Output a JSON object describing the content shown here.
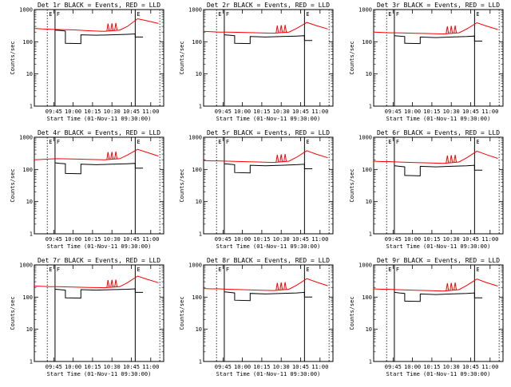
{
  "chart_data": {
    "type": "line",
    "layout": "3x3 grid",
    "x_ticks": [
      "09:45",
      "10:00",
      "10:15",
      "10:30",
      "10:45",
      "11:00"
    ],
    "x_range": [
      "09:30",
      "11:10"
    ],
    "y_scale": "log",
    "ylim": [
      1,
      1000
    ],
    "y_ticks": [
      "1",
      "10",
      "100",
      "1000"
    ],
    "ylabel": "Counts/sec",
    "xlabel": "Start Time (01-Nov-11 09:30:00)",
    "series_colors": {
      "events": "#000000",
      "lld": "#ff0000"
    },
    "markers": [
      {
        "time": "09:40",
        "label": "E",
        "style": "dotted"
      },
      {
        "time": "09:46",
        "label": "F",
        "style": "solid"
      },
      {
        "time": "10:48",
        "label": "E",
        "style": "solid"
      },
      {
        "time": "11:07",
        "label": "",
        "style": "dotted"
      }
    ],
    "panels": [
      {
        "title": "Det 1r BLACK = Events, RED = LLD",
        "events": [
          [
            9.77,
            230
          ],
          [
            9.83,
            225
          ],
          [
            9.9,
            215
          ],
          [
            9.9,
            90
          ],
          [
            10.1,
            88
          ],
          [
            10.1,
            165
          ],
          [
            10.3,
            160
          ],
          [
            10.5,
            165
          ],
          [
            10.7,
            170
          ],
          [
            10.8,
            175
          ],
          [
            10.8,
            140
          ],
          [
            10.9,
            140
          ]
        ],
        "lld": [
          [
            9.5,
            260
          ],
          [
            9.6,
            250
          ],
          [
            9.7,
            245
          ],
          [
            9.8,
            240
          ],
          [
            10.0,
            235
          ],
          [
            10.2,
            220
          ],
          [
            10.4,
            210
          ],
          [
            10.6,
            230
          ],
          [
            10.7,
            300
          ],
          [
            10.83,
            520
          ],
          [
            10.95,
            450
          ],
          [
            11.1,
            370
          ]
        ],
        "lld_spikes": [
          10.45,
          10.5,
          10.55
        ]
      },
      {
        "title": "Det 2r BLACK = Events, RED = LLD",
        "events": [
          [
            9.77,
            165
          ],
          [
            9.83,
            160
          ],
          [
            9.9,
            155
          ],
          [
            9.9,
            90
          ],
          [
            10.1,
            88
          ],
          [
            10.1,
            145
          ],
          [
            10.3,
            140
          ],
          [
            10.5,
            145
          ],
          [
            10.7,
            150
          ],
          [
            10.8,
            155
          ],
          [
            10.8,
            110
          ],
          [
            10.9,
            110
          ]
        ],
        "lld": [
          [
            9.5,
            210
          ],
          [
            9.6,
            205
          ],
          [
            9.7,
            200
          ],
          [
            9.8,
            200
          ],
          [
            10.0,
            195
          ],
          [
            10.2,
            190
          ],
          [
            10.4,
            185
          ],
          [
            10.6,
            200
          ],
          [
            10.7,
            260
          ],
          [
            10.83,
            400
          ],
          [
            10.95,
            320
          ],
          [
            11.1,
            250
          ]
        ],
        "lld_spikes": [
          10.45,
          10.5,
          10.55
        ]
      },
      {
        "title": "Det 3r BLACK = Events, RED = LLD",
        "events": [
          [
            9.77,
            155
          ],
          [
            9.83,
            150
          ],
          [
            9.9,
            145
          ],
          [
            9.9,
            90
          ],
          [
            10.1,
            88
          ],
          [
            10.1,
            140
          ],
          [
            10.3,
            135
          ],
          [
            10.5,
            140
          ],
          [
            10.7,
            145
          ],
          [
            10.8,
            150
          ],
          [
            10.8,
            105
          ],
          [
            10.9,
            105
          ]
        ],
        "lld": [
          [
            9.5,
            200
          ],
          [
            9.6,
            195
          ],
          [
            9.7,
            190
          ],
          [
            9.8,
            190
          ],
          [
            10.0,
            185
          ],
          [
            10.2,
            180
          ],
          [
            10.4,
            175
          ],
          [
            10.6,
            190
          ],
          [
            10.7,
            250
          ],
          [
            10.83,
            390
          ],
          [
            10.95,
            310
          ],
          [
            11.1,
            240
          ]
        ],
        "lld_spikes": [
          10.45,
          10.5,
          10.55
        ]
      },
      {
        "title": "Det 4r BLACK = Events, RED = LLD",
        "events": [
          [
            9.77,
            160
          ],
          [
            9.83,
            155
          ],
          [
            9.9,
            150
          ],
          [
            9.9,
            75
          ],
          [
            10.1,
            73
          ],
          [
            10.1,
            145
          ],
          [
            10.3,
            140
          ],
          [
            10.5,
            145
          ],
          [
            10.7,
            150
          ],
          [
            10.8,
            155
          ],
          [
            10.8,
            110
          ],
          [
            10.9,
            110
          ]
        ],
        "lld": [
          [
            9.5,
            200
          ],
          [
            9.6,
            205
          ],
          [
            9.7,
            210
          ],
          [
            9.8,
            215
          ],
          [
            10.0,
            210
          ],
          [
            10.2,
            205
          ],
          [
            10.4,
            200
          ],
          [
            10.6,
            215
          ],
          [
            10.7,
            280
          ],
          [
            10.83,
            420
          ],
          [
            10.95,
            340
          ],
          [
            11.1,
            260
          ]
        ],
        "lld_spikes": [
          10.45,
          10.5,
          10.55
        ]
      },
      {
        "title": "Det 5r BLACK = Events, RED = LLD",
        "events": [
          [
            9.77,
            150
          ],
          [
            9.83,
            145
          ],
          [
            9.9,
            140
          ],
          [
            9.9,
            80
          ],
          [
            10.1,
            78
          ],
          [
            10.1,
            135
          ],
          [
            10.3,
            130
          ],
          [
            10.5,
            135
          ],
          [
            10.7,
            140
          ],
          [
            10.8,
            145
          ],
          [
            10.8,
            105
          ],
          [
            10.9,
            105
          ]
        ],
        "lld": [
          [
            9.5,
            190
          ],
          [
            9.6,
            185
          ],
          [
            9.7,
            185
          ],
          [
            9.8,
            180
          ],
          [
            10.0,
            175
          ],
          [
            10.2,
            170
          ],
          [
            10.4,
            165
          ],
          [
            10.6,
            180
          ],
          [
            10.7,
            240
          ],
          [
            10.83,
            380
          ],
          [
            10.95,
            300
          ],
          [
            11.1,
            230
          ]
        ],
        "lld_spikes": [
          10.45,
          10.5,
          10.55
        ]
      },
      {
        "title": "Det 6r BLACK = Events, RED = LLD",
        "events": [
          [
            9.77,
            130
          ],
          [
            9.83,
            125
          ],
          [
            9.9,
            120
          ],
          [
            9.9,
            65
          ],
          [
            10.1,
            63
          ],
          [
            10.1,
            125
          ],
          [
            10.3,
            120
          ],
          [
            10.5,
            125
          ],
          [
            10.7,
            130
          ],
          [
            10.8,
            135
          ],
          [
            10.8,
            95
          ],
          [
            10.9,
            95
          ]
        ],
        "lld": [
          [
            9.5,
            180
          ],
          [
            9.6,
            175
          ],
          [
            9.7,
            175
          ],
          [
            9.8,
            170
          ],
          [
            10.0,
            165
          ],
          [
            10.2,
            160
          ],
          [
            10.4,
            155
          ],
          [
            10.6,
            170
          ],
          [
            10.7,
            230
          ],
          [
            10.83,
            370
          ],
          [
            10.95,
            290
          ],
          [
            11.1,
            220
          ]
        ],
        "lld_spikes": [
          10.45,
          10.5,
          10.55
        ]
      },
      {
        "title": "Det 7r BLACK = Events, RED = LLD",
        "events": [
          [
            9.77,
            175
          ],
          [
            9.83,
            170
          ],
          [
            9.9,
            165
          ],
          [
            9.9,
            95
          ],
          [
            10.1,
            93
          ],
          [
            10.1,
            170
          ],
          [
            10.3,
            165
          ],
          [
            10.5,
            170
          ],
          [
            10.7,
            175
          ],
          [
            10.8,
            180
          ],
          [
            10.8,
            140
          ],
          [
            10.9,
            140
          ]
        ],
        "lld": [
          [
            9.5,
            220
          ],
          [
            9.6,
            215
          ],
          [
            9.7,
            210
          ],
          [
            9.8,
            210
          ],
          [
            10.0,
            205
          ],
          [
            10.2,
            200
          ],
          [
            10.4,
            195
          ],
          [
            10.6,
            210
          ],
          [
            10.7,
            280
          ],
          [
            10.83,
            450
          ],
          [
            10.95,
            360
          ],
          [
            11.1,
            280
          ]
        ],
        "lld_spikes": [
          10.45,
          10.5,
          10.55
        ]
      },
      {
        "title": "Det 8r BLACK = Events, RED = LLD",
        "events": [
          [
            9.77,
            145
          ],
          [
            9.83,
            140
          ],
          [
            9.9,
            135
          ],
          [
            9.9,
            80
          ],
          [
            10.1,
            78
          ],
          [
            10.1,
            130
          ],
          [
            10.3,
            125
          ],
          [
            10.5,
            130
          ],
          [
            10.7,
            135
          ],
          [
            10.8,
            140
          ],
          [
            10.8,
            100
          ],
          [
            10.9,
            100
          ]
        ],
        "lld": [
          [
            9.5,
            185
          ],
          [
            9.6,
            180
          ],
          [
            9.7,
            180
          ],
          [
            9.8,
            175
          ],
          [
            10.0,
            170
          ],
          [
            10.2,
            165
          ],
          [
            10.4,
            160
          ],
          [
            10.6,
            175
          ],
          [
            10.7,
            235
          ],
          [
            10.83,
            375
          ],
          [
            10.95,
            295
          ],
          [
            11.1,
            225
          ]
        ],
        "lld_spikes": [
          10.45,
          10.5,
          10.55
        ]
      },
      {
        "title": "Det 9r BLACK = Events, RED = LLD",
        "events": [
          [
            9.77,
            140
          ],
          [
            9.83,
            135
          ],
          [
            9.9,
            130
          ],
          [
            9.9,
            75
          ],
          [
            10.1,
            73
          ],
          [
            10.1,
            125
          ],
          [
            10.3,
            120
          ],
          [
            10.5,
            125
          ],
          [
            10.7,
            130
          ],
          [
            10.8,
            135
          ],
          [
            10.8,
            95
          ],
          [
            10.9,
            95
          ]
        ],
        "lld": [
          [
            9.5,
            180
          ],
          [
            9.6,
            175
          ],
          [
            9.7,
            175
          ],
          [
            9.8,
            170
          ],
          [
            10.0,
            165
          ],
          [
            10.2,
            160
          ],
          [
            10.4,
            155
          ],
          [
            10.6,
            170
          ],
          [
            10.7,
            230
          ],
          [
            10.83,
            365
          ],
          [
            10.95,
            285
          ],
          [
            11.1,
            220
          ]
        ],
        "lld_spikes": [
          10.45,
          10.5,
          10.55
        ]
      }
    ]
  }
}
